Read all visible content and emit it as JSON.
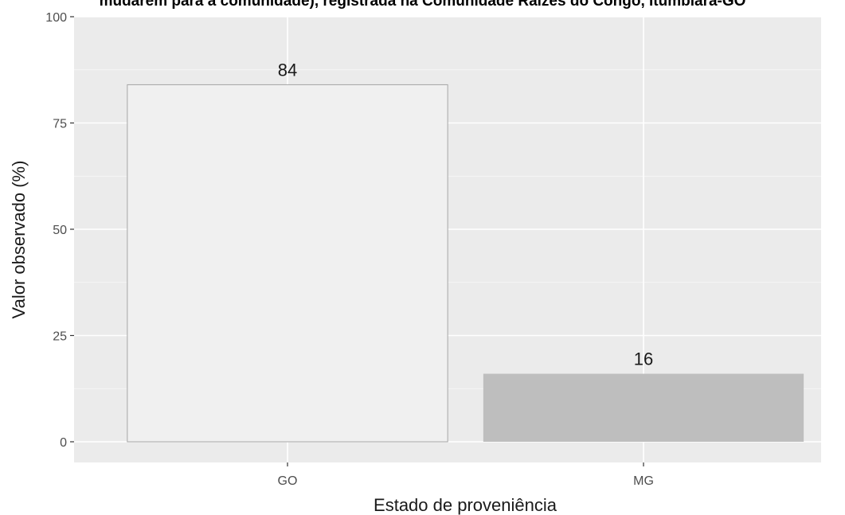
{
  "chart_data": {
    "type": "bar",
    "title": "mudarem para a comunidade), registrada na Comunidade Raízes do Congo, Itumbiara-GO",
    "categories": [
      "GO",
      "MG"
    ],
    "values": [
      84,
      16
    ],
    "data_labels": [
      "84",
      "16"
    ],
    "xlabel": "Estado de proveniência",
    "ylabel": "Valor observado (%)",
    "ylim": [
      0,
      100
    ],
    "yticks": [
      "0",
      "25",
      "50",
      "75",
      "100"
    ],
    "grid": true,
    "legend": "none",
    "colors": {
      "panel_background": "#ebebeb",
      "grid_line": "#ffffff",
      "bar_fills": [
        "#f0f0f0",
        "#bebebe"
      ],
      "bar_outline": "#a6a6a6"
    }
  }
}
